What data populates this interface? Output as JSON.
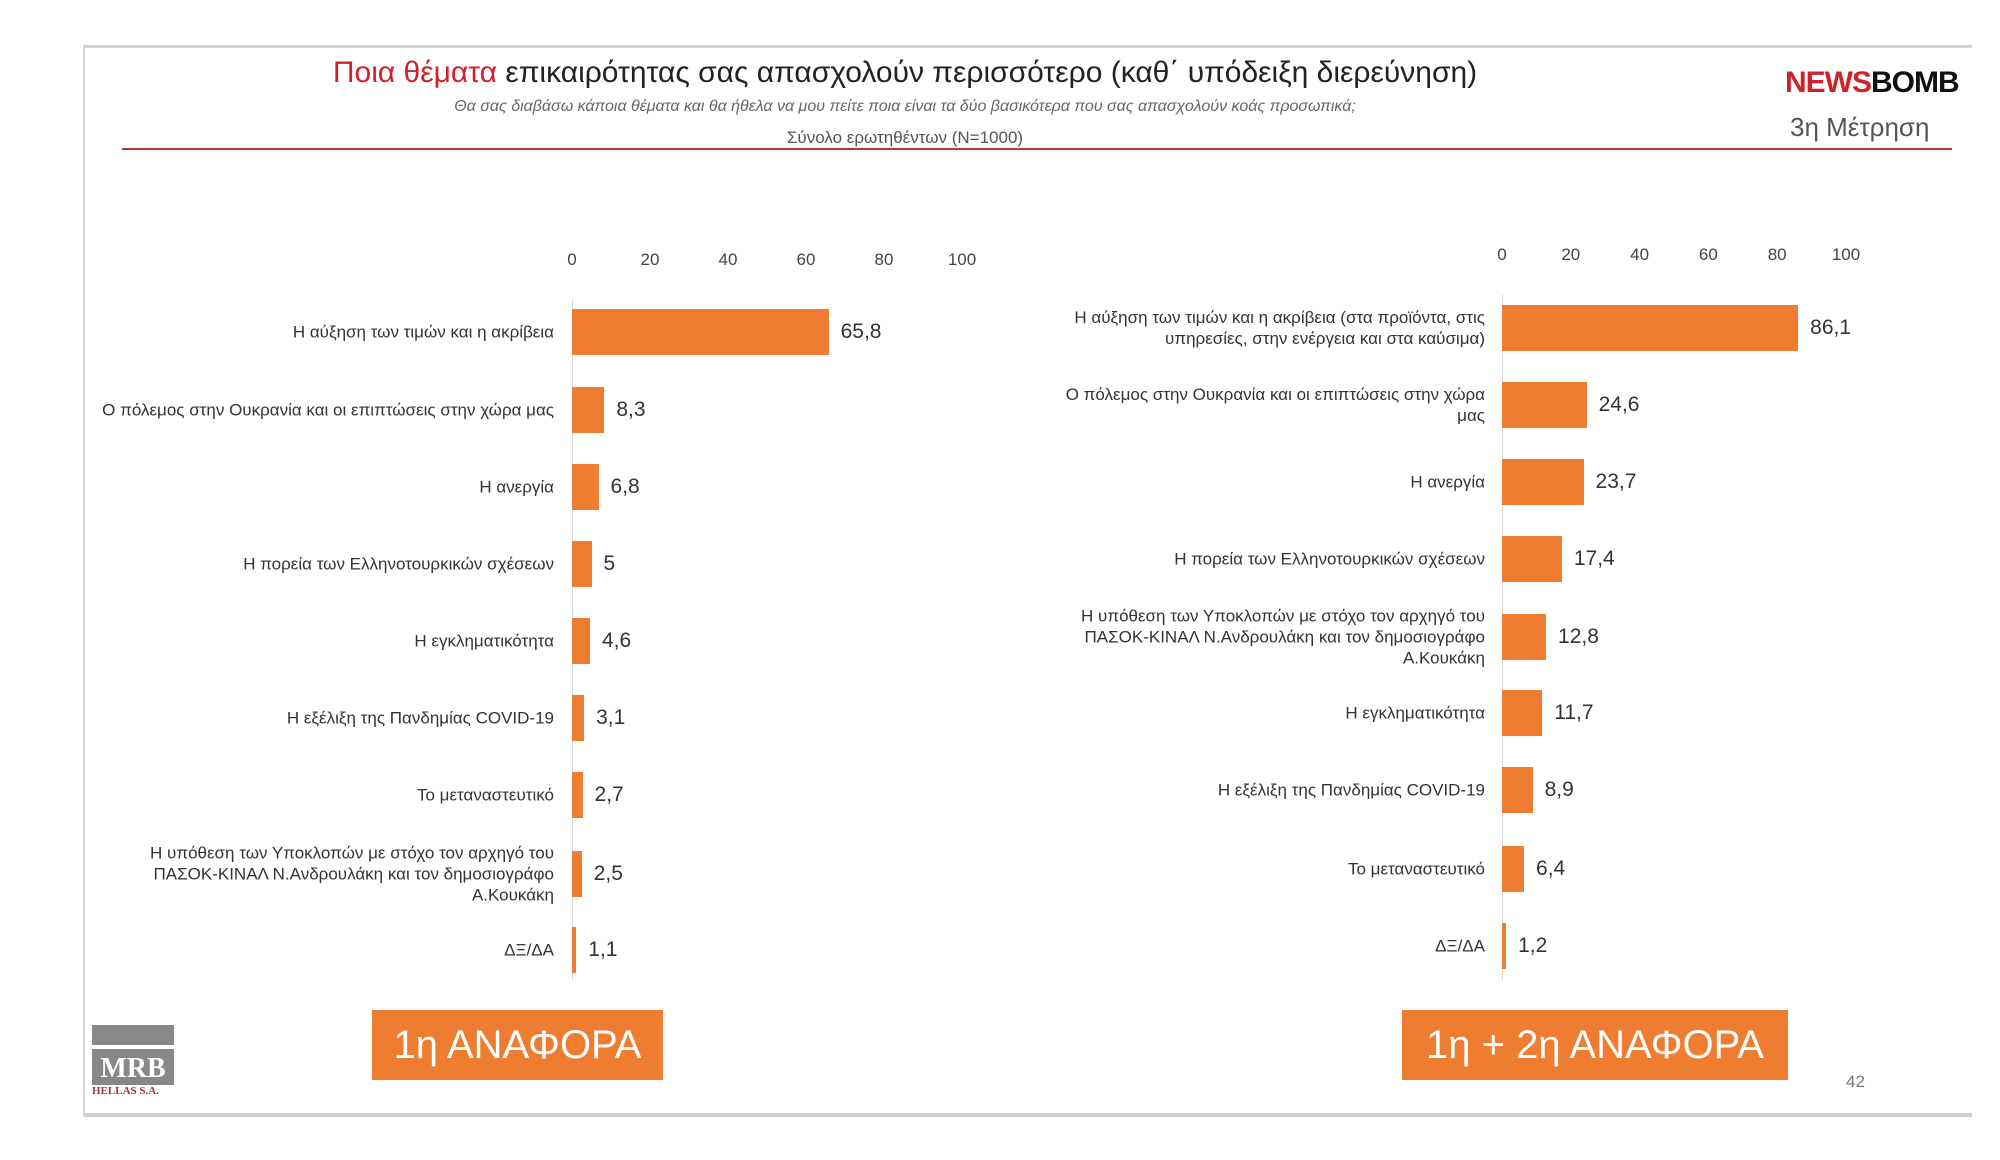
{
  "header": {
    "title_highlight": "Ποια θέματα",
    "title_rest": " επικαιρότητας σας απασχολούν περισσότερο (καθ΄ υπόδειξη διερεύνηση)",
    "subtitle": "Θα σας διαβάσω κάποια θέματα και θα ήθελα να μου πείτε ποια είναι τα δύο βασικότερα που σας απασχολούν  κοάς προσωπικά;",
    "base": "Σύνολο ερωτηθέντων (N=1000)",
    "logo_red": "NEWS",
    "logo_black": "BOMB",
    "wave": "3η Μέτρηση"
  },
  "footer": {
    "left_button": "1η ΑΝΑΦΟΡΑ",
    "right_button": "1η + 2η ΑΝΑΦΟΡΑ",
    "mrb_logo": "MRB",
    "mrb_sub": "HELLAS S.A.",
    "page_number": "42"
  },
  "colors": {
    "bar": "#ee7d31",
    "accent": "#d0202a"
  },
  "chart_data": [
    {
      "type": "bar",
      "orientation": "horizontal",
      "xlim": [
        0,
        100
      ],
      "ticks": [
        "0",
        "20",
        "40",
        "60",
        "80",
        "100"
      ],
      "categories": [
        "Η αύξηση των τιμών και η ακρίβεια",
        "Ο πόλεμος στην Ουκρανία και οι επιπτώσεις στην χώρα μας",
        "Η ανεργία",
        "Η πορεία των Ελληνοτουρκικών σχέσεων",
        "Η εγκληματικότητα",
        "Η εξέλιξη της Πανδημίας COVID-19",
        "Το μεταναστευτικό",
        "Η υπόθεση των Υποκλοπών με στόχο τον αρχηγό του ΠΑΣΟΚ-ΚΙΝΑΛ Ν.Ανδρουλάκη και τον δημοσιογράφο Α.Κουκάκη",
        "ΔΞ/ΔΑ"
      ],
      "values": [
        65.8,
        8.3,
        6.8,
        5,
        4.6,
        3.1,
        2.7,
        2.5,
        1.1
      ],
      "labels": [
        "65,8",
        "8,3",
        "6,8",
        "5",
        "4,6",
        "3,1",
        "2,7",
        "2,5",
        "1,1"
      ]
    },
    {
      "type": "bar",
      "orientation": "horizontal",
      "xlim": [
        0,
        100
      ],
      "ticks": [
        "0",
        "20",
        "40",
        "60",
        "80",
        "100"
      ],
      "categories": [
        "Η αύξηση των τιμών και η ακρίβεια (στα προϊόντα, στις υπηρεσίες, στην ενέργεια και στα καύσιμα)",
        "Ο πόλεμος στην Ουκρανία και οι επιπτώσεις στην χώρα μας",
        "Η ανεργία",
        "Η πορεία των Ελληνοτουρκικών σχέσεων",
        "Η υπόθεση των Υποκλοπών με στόχο τον αρχηγό του ΠΑΣΟΚ-ΚΙΝΑΛ Ν.Ανδρουλάκη και τον δημοσιογράφο Α.Κουκάκη",
        "Η εγκληματικότητα",
        "Η εξέλιξη της Πανδημίας COVID-19",
        "Το μεταναστευτικό",
        "ΔΞ/ΔΑ"
      ],
      "values": [
        86.1,
        24.6,
        23.7,
        17.4,
        12.8,
        11.7,
        8.9,
        6.4,
        1.2
      ],
      "labels": [
        "86,1",
        "24,6",
        "23,7",
        "17,4",
        "12,8",
        "11,7",
        "8,9",
        "6,4",
        "1,2"
      ]
    }
  ]
}
